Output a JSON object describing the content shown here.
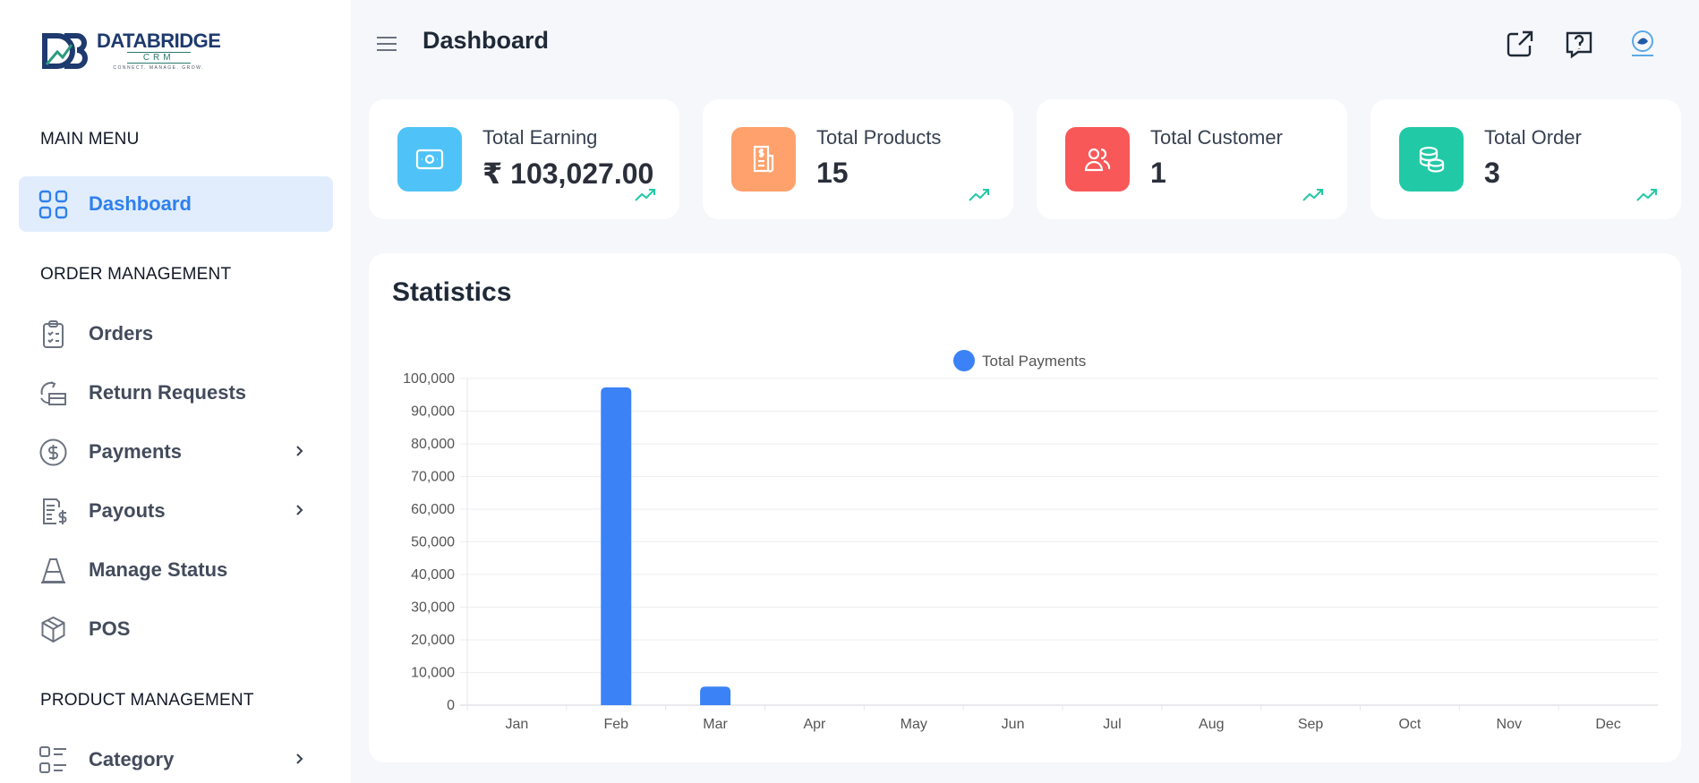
{
  "logo": {
    "brand_a": "DATA",
    "brand_b": "BRIDGE",
    "sub": "CRM",
    "tagline": "CONNECT. MANAGE. GROW."
  },
  "sidebar": {
    "sections": [
      {
        "title": "MAIN MENU"
      },
      {
        "title": "ORDER MANAGEMENT"
      },
      {
        "title": "PRODUCT MANAGEMENT"
      }
    ],
    "items": [
      {
        "label": "Dashboard",
        "icon": "grid-icon",
        "active": true
      },
      {
        "label": "Orders",
        "icon": "clipboard-icon"
      },
      {
        "label": "Return Requests",
        "icon": "return-box-icon"
      },
      {
        "label": "Payments",
        "icon": "dollar-circle-icon",
        "has_children": true
      },
      {
        "label": "Payouts",
        "icon": "invoice-dollar-icon",
        "has_children": true
      },
      {
        "label": "Manage Status",
        "icon": "cone-icon"
      },
      {
        "label": "POS",
        "icon": "box-icon"
      },
      {
        "label": "Category",
        "icon": "category-icon",
        "has_children": true
      }
    ]
  },
  "header": {
    "title": "Dashboard",
    "icons": [
      "external-link-icon",
      "help-chat-icon",
      "avatar"
    ]
  },
  "cards": [
    {
      "title": "Total Earning",
      "value": "₹ 103,027.00",
      "color": "#4fc3f7",
      "icon": "cash-icon"
    },
    {
      "title": "Total Products",
      "value": "15",
      "color": "#ffa16c",
      "icon": "receipt-icon"
    },
    {
      "title": "Total Customer",
      "value": "1",
      "color": "#f95858",
      "icon": "users-icon"
    },
    {
      "title": "Total Order",
      "value": "3",
      "color": "#22c9a6",
      "icon": "coins-icon"
    }
  ],
  "statistics": {
    "title": "Statistics"
  },
  "chart_data": {
    "type": "bar",
    "categories": [
      "Jan",
      "Feb",
      "Mar",
      "Apr",
      "May",
      "Jun",
      "Jul",
      "Aug",
      "Sep",
      "Oct",
      "Nov",
      "Dec"
    ],
    "series": [
      {
        "name": "Total Payments",
        "color": "#3b82f6",
        "values": [
          0,
          97300,
          5700,
          0,
          0,
          0,
          0,
          0,
          0,
          0,
          0,
          0
        ]
      }
    ],
    "ylim": [
      0,
      100000
    ],
    "yticks": [
      "0",
      "10,000",
      "20,000",
      "30,000",
      "40,000",
      "50,000",
      "60,000",
      "70,000",
      "80,000",
      "90,000",
      "100,000"
    ],
    "grid": true,
    "legend": "top-center"
  }
}
